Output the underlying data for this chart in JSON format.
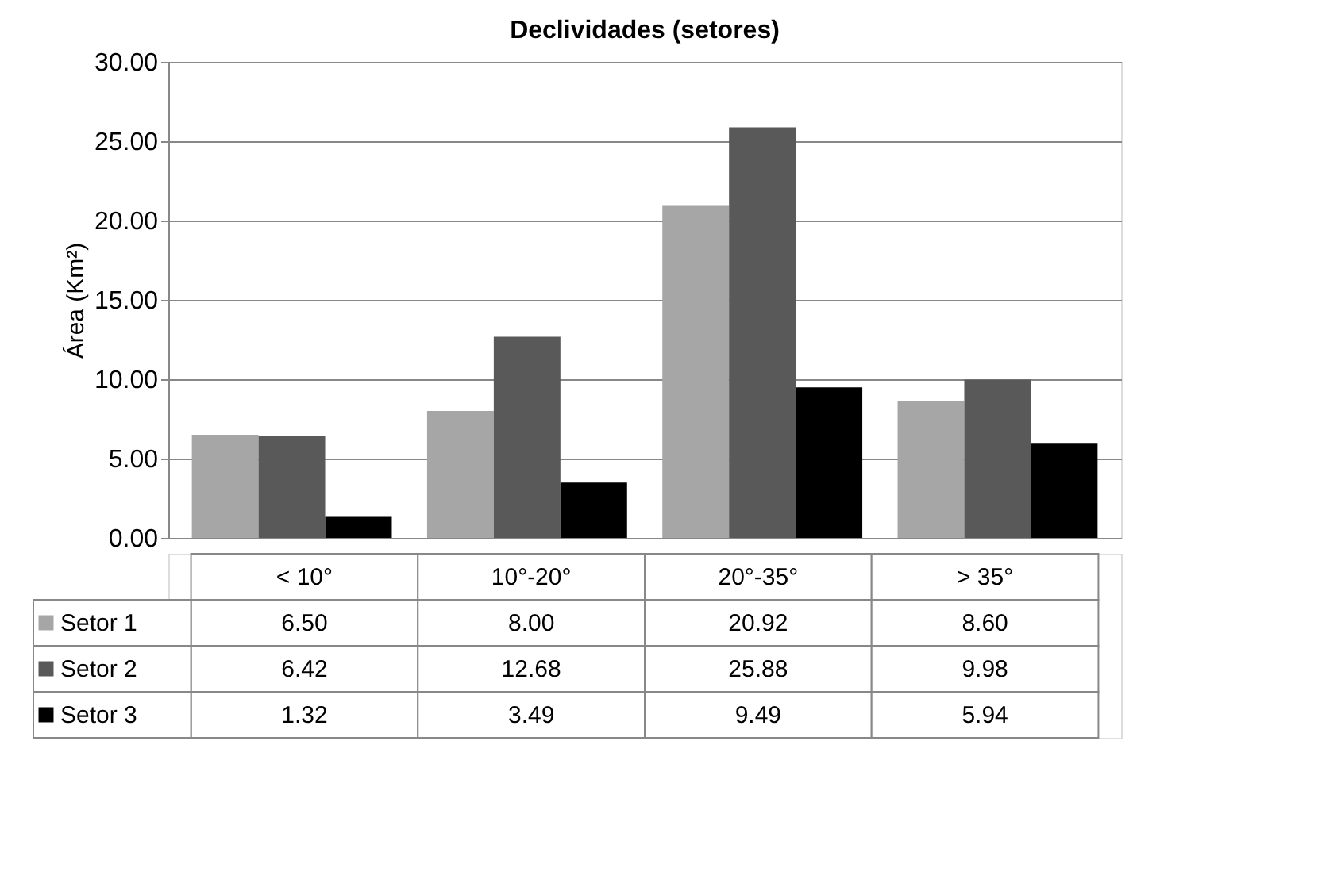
{
  "chart_data": {
    "type": "bar",
    "title": "Declividades  (setores)",
    "ylabel": "Área (Km²)",
    "categories": [
      "< 10°",
      "10°-20°",
      "20°-35°",
      "> 35°"
    ],
    "series": [
      {
        "name": "Setor 1",
        "color": "#a6a6a6",
        "values": [
          6.5,
          8.0,
          20.92,
          8.6
        ],
        "value_labels": [
          "6.50",
          "8.00",
          "20.92",
          "8.60"
        ]
      },
      {
        "name": "Setor 2",
        "color": "#595959",
        "values": [
          6.42,
          12.68,
          25.88,
          9.98
        ],
        "value_labels": [
          "6.42",
          "12.68",
          "25.88",
          "9.98"
        ]
      },
      {
        "name": "Setor 3",
        "color": "#000000",
        "values": [
          1.32,
          3.49,
          9.49,
          5.94
        ],
        "value_labels": [
          "1.32",
          "3.49",
          "9.49",
          "5.94"
        ]
      }
    ],
    "ylim": [
      0,
      30
    ],
    "yticks": [
      {
        "value": 0,
        "label": "0.00"
      },
      {
        "value": 5,
        "label": "5.00"
      },
      {
        "value": 10,
        "label": "10.00"
      },
      {
        "value": 15,
        "label": "15.00"
      },
      {
        "value": 20,
        "label": "20.00"
      },
      {
        "value": 25,
        "label": "25.00"
      },
      {
        "value": 30,
        "label": "30.00"
      }
    ],
    "grid": "y",
    "legend": "bottom"
  }
}
